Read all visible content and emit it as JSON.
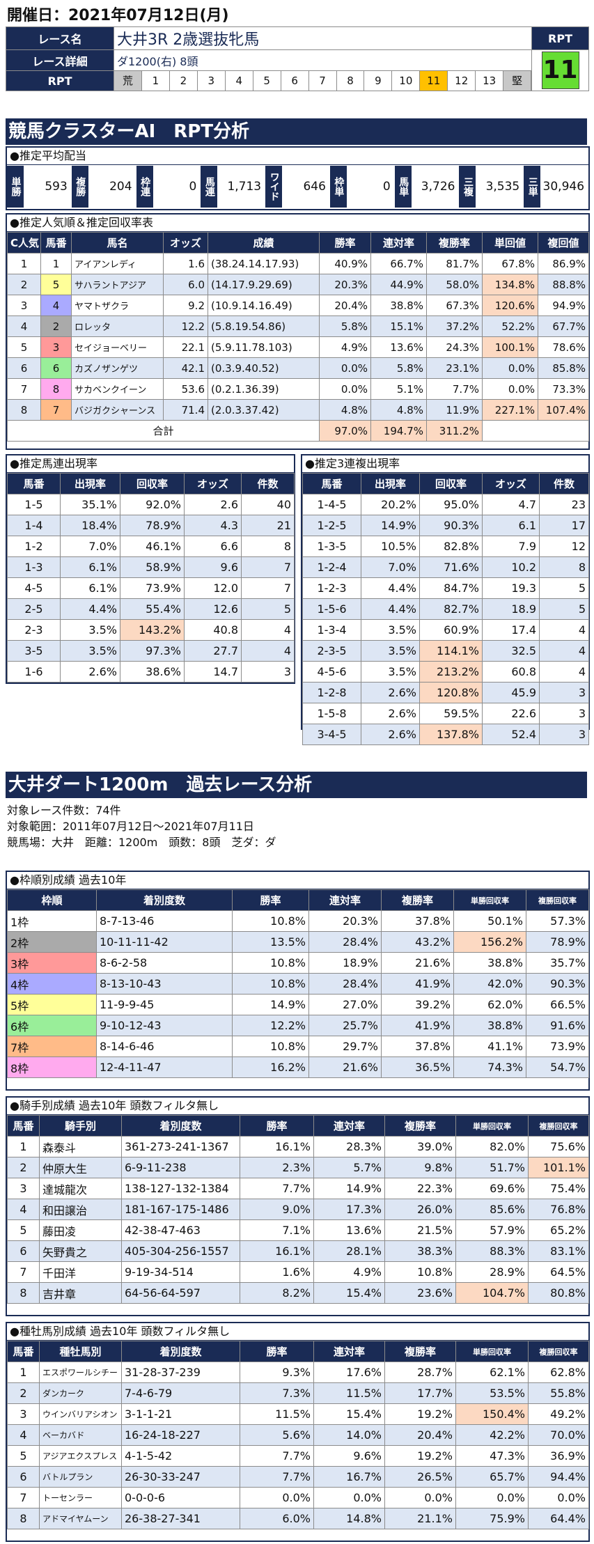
{
  "header": {
    "date": "開催日：2021年07月12日(月)"
  },
  "race": {
    "name_label": "レース名",
    "name": "大井3R 2歳選抜牝馬",
    "detail_label": "レース詳細",
    "detail": "ダ1200(右)  8頭",
    "rpt_label": "RPT",
    "rpt_header": "RPT",
    "rpt_value": "11",
    "scale": [
      "荒",
      "1",
      "2",
      "3",
      "4",
      "5",
      "6",
      "7",
      "8",
      "9",
      "10",
      "11",
      "12",
      "13",
      "堅"
    ]
  },
  "section1_title": "競馬クラスターAI　RPT分析",
  "payout": {
    "title": "●推定平均配当",
    "items": [
      {
        "label": "単勝",
        "value": "593"
      },
      {
        "label": "複勝",
        "value": "204"
      },
      {
        "label": "枠連",
        "value": "0"
      },
      {
        "label": "馬連",
        "value": "1,713"
      },
      {
        "label": "ワイド",
        "value": "646"
      },
      {
        "label": "枠単",
        "value": "0"
      },
      {
        "label": "馬単",
        "value": "3,726"
      },
      {
        "label": "三複",
        "value": "3,535"
      },
      {
        "label": "三単",
        "value": "30,946"
      }
    ]
  },
  "popularity": {
    "title": "●推定人気順＆推定回収率表",
    "headers": [
      "C人気",
      "馬番",
      "馬名",
      "オッズ",
      "成績",
      "勝率",
      "連対率",
      "複勝率",
      "単回値",
      "複回値"
    ],
    "rows": [
      [
        "1",
        "1",
        "アイアンレディ",
        "1.6",
        "(38.24.14.17.93)",
        "40.9%",
        "66.7%",
        "81.7%",
        "67.8%",
        "86.9%"
      ],
      [
        "2",
        "5",
        "サハラントアジア",
        "6.0",
        "(14.17.9.29.69)",
        "20.3%",
        "44.9%",
        "58.0%",
        "134.8%",
        "88.8%"
      ],
      [
        "3",
        "4",
        "ヤマトザクラ",
        "9.2",
        "(10.9.14.16.49)",
        "20.4%",
        "38.8%",
        "67.3%",
        "120.6%",
        "94.9%"
      ],
      [
        "4",
        "2",
        "ロレッタ",
        "12.2",
        "(5.8.19.54.86)",
        "5.8%",
        "15.1%",
        "37.2%",
        "52.2%",
        "67.7%"
      ],
      [
        "5",
        "3",
        "セイジョーベリー",
        "22.1",
        "(5.9.11.78.103)",
        "4.9%",
        "13.6%",
        "24.3%",
        "100.1%",
        "78.6%"
      ],
      [
        "6",
        "6",
        "カズノザンゲツ",
        "42.1",
        "(0.3.9.40.52)",
        "0.0%",
        "5.8%",
        "23.1%",
        "0.0%",
        "85.8%"
      ],
      [
        "7",
        "8",
        "サカベンクイーン",
        "53.6",
        "(0.2.1.36.39)",
        "0.0%",
        "5.1%",
        "7.7%",
        "0.0%",
        "73.3%"
      ],
      [
        "8",
        "7",
        "バジガクシャーンス",
        "71.4",
        "(2.0.3.37.42)",
        "4.8%",
        "4.8%",
        "11.9%",
        "227.1%",
        "107.4%"
      ]
    ],
    "total_label": "合計",
    "totals": [
      "97.0%",
      "194.7%",
      "311.2%"
    ]
  },
  "umaren": {
    "title": "●推定馬連出現率",
    "headers": [
      "馬番",
      "出現率",
      "回収率",
      "オッズ",
      "件数"
    ],
    "rows": [
      [
        "1-5",
        "35.1%",
        "92.0%",
        "2.6",
        "40"
      ],
      [
        "1-4",
        "18.4%",
        "78.9%",
        "4.3",
        "21"
      ],
      [
        "1-2",
        "7.0%",
        "46.1%",
        "6.6",
        "8"
      ],
      [
        "1-3",
        "6.1%",
        "58.9%",
        "9.6",
        "7"
      ],
      [
        "4-5",
        "6.1%",
        "73.9%",
        "12.0",
        "7"
      ],
      [
        "2-5",
        "4.4%",
        "55.4%",
        "12.6",
        "5"
      ],
      [
        "2-3",
        "3.5%",
        "143.2%",
        "40.8",
        "4"
      ],
      [
        "3-5",
        "3.5%",
        "97.3%",
        "27.7",
        "4"
      ],
      [
        "1-6",
        "2.6%",
        "38.6%",
        "14.7",
        "3"
      ]
    ]
  },
  "sanrenpuku": {
    "title": "●推定3連複出現率",
    "headers": [
      "馬番",
      "出現率",
      "回収率",
      "オッズ",
      "件数"
    ],
    "rows": [
      [
        "1-4-5",
        "20.2%",
        "95.0%",
        "4.7",
        "23"
      ],
      [
        "1-2-5",
        "14.9%",
        "90.3%",
        "6.1",
        "17"
      ],
      [
        "1-3-5",
        "10.5%",
        "82.8%",
        "7.9",
        "12"
      ],
      [
        "1-2-4",
        "7.0%",
        "71.6%",
        "10.2",
        "8"
      ],
      [
        "1-2-3",
        "4.4%",
        "84.7%",
        "19.3",
        "5"
      ],
      [
        "1-5-6",
        "4.4%",
        "82.7%",
        "18.9",
        "5"
      ],
      [
        "1-3-4",
        "3.5%",
        "60.9%",
        "17.4",
        "4"
      ],
      [
        "2-3-5",
        "3.5%",
        "114.1%",
        "32.5",
        "4"
      ],
      [
        "4-5-6",
        "3.5%",
        "213.2%",
        "60.8",
        "4"
      ],
      [
        "1-2-8",
        "2.6%",
        "120.8%",
        "45.9",
        "3"
      ],
      [
        "1-5-8",
        "2.6%",
        "59.5%",
        "22.6",
        "3"
      ],
      [
        "3-4-5",
        "2.6%",
        "137.8%",
        "52.4",
        "3"
      ]
    ]
  },
  "section2_title": "大井ダート1200m　過去レース分析",
  "past_info": [
    "対象レース件数：74件",
    "対象範囲：2011年07月12日～2021年07月11日",
    "競馬場：大井　距離：1200m　頭数：8頭　芝ダ：ダ"
  ],
  "waku": {
    "title": "●枠順別成績 過去10年",
    "headers": [
      "枠順",
      "着別度数",
      "勝率",
      "連対率",
      "複勝率",
      "単勝回収率",
      "複勝回収率"
    ],
    "rows": [
      [
        "1枠",
        "8-7-13-46",
        "10.8%",
        "20.3%",
        "37.8%",
        "50.1%",
        "57.3%"
      ],
      [
        "2枠",
        "10-11-11-42",
        "13.5%",
        "28.4%",
        "43.2%",
        "156.2%",
        "78.9%"
      ],
      [
        "3枠",
        "8-6-2-58",
        "10.8%",
        "18.9%",
        "21.6%",
        "38.8%",
        "35.7%"
      ],
      [
        "4枠",
        "8-13-10-43",
        "10.8%",
        "28.4%",
        "41.9%",
        "42.0%",
        "90.3%"
      ],
      [
        "5枠",
        "11-9-9-45",
        "14.9%",
        "27.0%",
        "39.2%",
        "62.0%",
        "66.5%"
      ],
      [
        "6枠",
        "9-10-12-43",
        "12.2%",
        "25.7%",
        "41.9%",
        "38.8%",
        "91.6%"
      ],
      [
        "7枠",
        "8-14-6-46",
        "10.8%",
        "29.7%",
        "37.8%",
        "41.1%",
        "73.9%"
      ],
      [
        "8枠",
        "12-4-11-47",
        "16.2%",
        "21.6%",
        "36.5%",
        "74.3%",
        "54.7%"
      ]
    ]
  },
  "jockey": {
    "title": "●騎手別成績 過去10年 頭数フィルタ無し",
    "headers": [
      "馬番",
      "騎手別",
      "着別度数",
      "勝率",
      "連対率",
      "複勝率",
      "単勝回収率",
      "複勝回収率"
    ],
    "rows": [
      [
        "1",
        "森泰斗",
        "361-273-241-1367",
        "16.1%",
        "28.3%",
        "39.0%",
        "82.0%",
        "75.6%"
      ],
      [
        "2",
        "仲原大生",
        "6-9-11-238",
        "2.3%",
        "5.7%",
        "9.8%",
        "51.7%",
        "101.1%"
      ],
      [
        "3",
        "達城龍次",
        "138-127-132-1384",
        "7.7%",
        "14.9%",
        "22.3%",
        "69.6%",
        "75.4%"
      ],
      [
        "4",
        "和田譲治",
        "181-167-175-1486",
        "9.0%",
        "17.3%",
        "26.0%",
        "85.6%",
        "76.8%"
      ],
      [
        "5",
        "藤田凌",
        "42-38-47-463",
        "7.1%",
        "13.6%",
        "21.5%",
        "57.9%",
        "65.2%"
      ],
      [
        "6",
        "矢野貴之",
        "405-304-256-1557",
        "16.1%",
        "28.1%",
        "38.3%",
        "88.3%",
        "83.1%"
      ],
      [
        "7",
        "千田洋",
        "9-19-34-514",
        "1.6%",
        "4.9%",
        "10.8%",
        "28.9%",
        "64.5%"
      ],
      [
        "8",
        "吉井章",
        "64-56-64-597",
        "8.2%",
        "15.4%",
        "23.6%",
        "104.7%",
        "80.8%"
      ]
    ]
  },
  "sire": {
    "title": "●種牡馬別成績 過去10年 頭数フィルタ無し",
    "headers": [
      "馬番",
      "種牡馬別",
      "着別度数",
      "勝率",
      "連対率",
      "複勝率",
      "単勝回収率",
      "複勝回収率"
    ],
    "rows": [
      [
        "1",
        "エスポワールシチー",
        "31-28-37-239",
        "9.3%",
        "17.6%",
        "28.7%",
        "62.1%",
        "62.8%"
      ],
      [
        "2",
        "ダンカーク",
        "7-4-6-79",
        "7.3%",
        "11.5%",
        "17.7%",
        "53.5%",
        "55.8%"
      ],
      [
        "3",
        "ウインバリアシオン",
        "3-1-1-21",
        "11.5%",
        "15.4%",
        "19.2%",
        "150.4%",
        "49.2%"
      ],
      [
        "4",
        "ベーカバド",
        "16-24-18-227",
        "5.6%",
        "14.0%",
        "20.4%",
        "42.2%",
        "70.0%"
      ],
      [
        "5",
        "アジアエクスプレス",
        "4-1-5-42",
        "7.7%",
        "9.6%",
        "19.2%",
        "47.3%",
        "36.9%"
      ],
      [
        "6",
        "バトルプラン",
        "26-30-33-247",
        "7.7%",
        "16.7%",
        "26.5%",
        "65.7%",
        "94.4%"
      ],
      [
        "7",
        "トーセンラー",
        "0-0-0-6",
        "0.0%",
        "0.0%",
        "0.0%",
        "0.0%",
        "0.0%"
      ],
      [
        "8",
        "アドマイヤムーン",
        "26-38-27-341",
        "6.0%",
        "14.8%",
        "21.1%",
        "75.9%",
        "64.4%"
      ]
    ]
  },
  "colors": {
    "navy": "#1a2b55",
    "highlight": "#fcd9c2",
    "stripe": "#dde6f4",
    "rpt_selected": "#ffc000",
    "rpt_box": "#66dd33",
    "waku": [
      "#ffffff",
      "#aaaaaa",
      "#ff9999",
      "#aaaaff",
      "#ffff99",
      "#99ee99",
      "#ffbb88",
      "#ffaaee"
    ]
  }
}
